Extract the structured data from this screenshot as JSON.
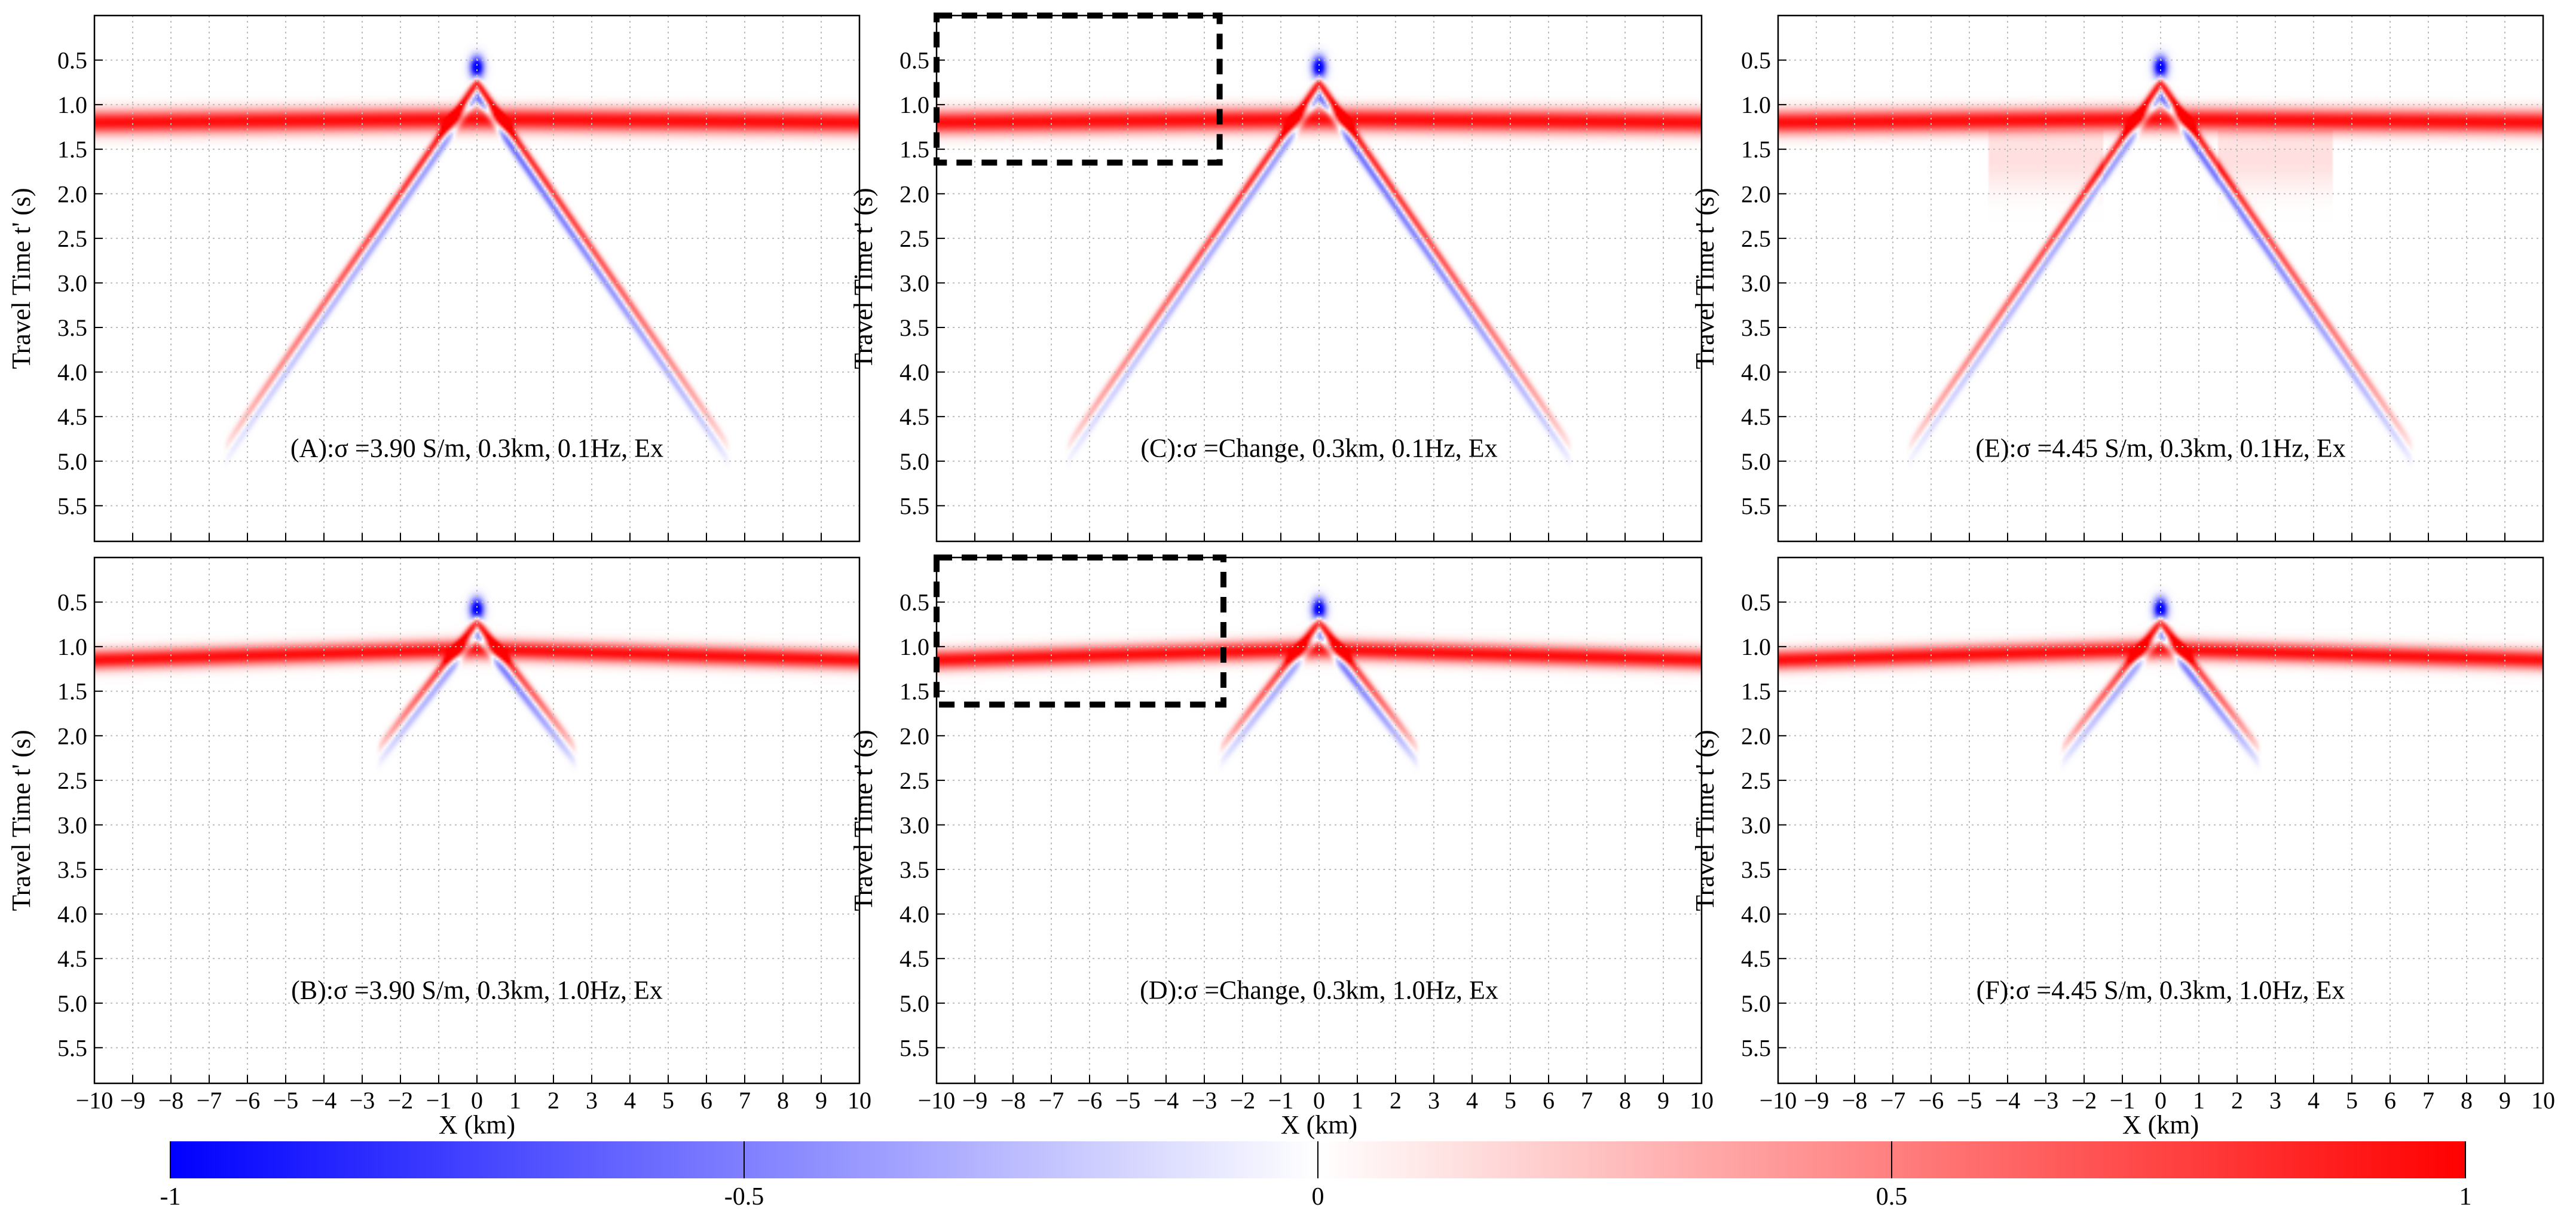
{
  "figure": {
    "colors": {
      "negative": "#0000ff",
      "zero": "#ffffff",
      "positive": "#ff0000",
      "grid": "#bdbdbd",
      "box": "#000000"
    }
  },
  "chart_data": [
    {
      "type": "heatmap",
      "panel": "A",
      "annotation": "(A):σ =3.90 S/m, 0.3km, 0.1Hz, Ex",
      "ylabel": "Travel Time t' (s)",
      "xlabel": "",
      "xlim": [
        -10,
        10
      ],
      "ylim": [
        5.9,
        0
      ],
      "xticks": [],
      "yticks": [
        "0.5",
        "1.0",
        "1.5",
        "2.0",
        "2.5",
        "3.0",
        "3.5",
        "4.0",
        "4.5",
        "5.0",
        "5.5"
      ],
      "grid": true,
      "features": {
        "band_center_s": 1.2,
        "band_halfwidth_s": 0.13,
        "apex_s": 0.75,
        "moveout_s_per_km": 0.62,
        "flank_extent_km": 6.0,
        "side_lobe": 0.0,
        "highlight_box": null
      }
    },
    {
      "type": "heatmap",
      "panel": "C",
      "annotation": "(C):σ =Change, 0.3km, 0.1Hz, Ex",
      "ylabel": "Travel Time t' (s)",
      "xlabel": "",
      "xlim": [
        -10,
        10
      ],
      "ylim": [
        5.9,
        0
      ],
      "xticks": [],
      "yticks": [
        "0.5",
        "1.0",
        "1.5",
        "2.0",
        "2.5",
        "3.0",
        "3.5",
        "4.0",
        "4.5",
        "5.0",
        "5.5"
      ],
      "grid": true,
      "features": {
        "band_center_s": 1.2,
        "band_halfwidth_s": 0.13,
        "apex_s": 0.75,
        "moveout_s_per_km": 0.62,
        "flank_extent_km": 6.0,
        "side_lobe": 0.0,
        "highlight_box": {
          "x": [
            -10,
            -2.6
          ],
          "t": [
            0.0,
            1.65
          ]
        }
      }
    },
    {
      "type": "heatmap",
      "panel": "E",
      "annotation": "(E):σ =4.45 S/m, 0.3km, 0.1Hz, Ex",
      "ylabel": "Travel Time t' (s)",
      "xlabel": "",
      "xlim": [
        -10,
        10
      ],
      "ylim": [
        5.9,
        0
      ],
      "xticks": [],
      "yticks": [
        "0.5",
        "1.0",
        "1.5",
        "2.0",
        "2.5",
        "3.0",
        "3.5",
        "4.0",
        "4.5",
        "5.0",
        "5.5"
      ],
      "grid": true,
      "features": {
        "band_center_s": 1.2,
        "band_halfwidth_s": 0.13,
        "apex_s": 0.75,
        "moveout_s_per_km": 0.62,
        "flank_extent_km": 6.0,
        "side_lobe": 0.25,
        "highlight_box": null
      }
    },
    {
      "type": "heatmap",
      "panel": "B",
      "annotation": "(B):σ =3.90 S/m, 0.3km, 1.0Hz, Ex",
      "ylabel": "Travel Time t' (s)",
      "xlabel": "X (km)",
      "xlim": [
        -10,
        10
      ],
      "ylim": [
        5.9,
        0
      ],
      "xticks": [
        "−10",
        "−9",
        "−8",
        "−7",
        "−6",
        "−5",
        "−4",
        "−3",
        "−2",
        "−1",
        "0",
        "1",
        "2",
        "3",
        "4",
        "5",
        "6",
        "7",
        "8",
        "9",
        "10"
      ],
      "yticks": [
        "0.5",
        "1.0",
        "1.5",
        "2.0",
        "2.5",
        "3.0",
        "3.5",
        "4.0",
        "4.5",
        "5.0",
        "5.5"
      ],
      "grid": true,
      "features": {
        "band_center_s": 1.15,
        "band_halfwidth_s": 0.11,
        "apex_s": 0.72,
        "moveout_s_per_km": 0.55,
        "flank_extent_km": 2.0,
        "side_lobe": 0.0,
        "highlight_box": null
      }
    },
    {
      "type": "heatmap",
      "panel": "D",
      "annotation": "(D):σ =Change, 0.3km, 1.0Hz, Ex",
      "ylabel": "Travel Time t' (s)",
      "xlabel": "X (km)",
      "xlim": [
        -10,
        10
      ],
      "ylim": [
        5.9,
        0
      ],
      "xticks": [
        "−10",
        "−9",
        "−8",
        "−7",
        "−6",
        "−5",
        "−4",
        "−3",
        "−2",
        "−1",
        "0",
        "1",
        "2",
        "3",
        "4",
        "5",
        "6",
        "7",
        "8",
        "9",
        "10"
      ],
      "yticks": [
        "0.5",
        "1.0",
        "1.5",
        "2.0",
        "2.5",
        "3.0",
        "3.5",
        "4.0",
        "4.5",
        "5.0",
        "5.5"
      ],
      "grid": true,
      "features": {
        "band_center_s": 1.15,
        "band_halfwidth_s": 0.11,
        "apex_s": 0.72,
        "moveout_s_per_km": 0.55,
        "flank_extent_km": 2.0,
        "side_lobe": 0.0,
        "highlight_box": {
          "x": [
            -10,
            -2.5
          ],
          "t": [
            0.0,
            1.65
          ]
        }
      }
    },
    {
      "type": "heatmap",
      "panel": "F",
      "annotation": "(F):σ =4.45 S/m, 0.3km, 1.0Hz, Ex",
      "ylabel": "Travel Time t' (s)",
      "xlabel": "X (km)",
      "xlim": [
        -10,
        10
      ],
      "ylim": [
        5.9,
        0
      ],
      "xticks": [
        "−10",
        "−9",
        "−8",
        "−7",
        "−6",
        "−5",
        "−4",
        "−3",
        "−2",
        "−1",
        "0",
        "1",
        "2",
        "3",
        "4",
        "5",
        "6",
        "7",
        "8",
        "9",
        "10"
      ],
      "yticks": [
        "0.5",
        "1.0",
        "1.5",
        "2.0",
        "2.5",
        "3.0",
        "3.5",
        "4.0",
        "4.5",
        "5.0",
        "5.5"
      ],
      "grid": true,
      "features": {
        "band_center_s": 1.15,
        "band_halfwidth_s": 0.11,
        "apex_s": 0.72,
        "moveout_s_per_km": 0.55,
        "flank_extent_km": 2.0,
        "side_lobe": 0.0,
        "highlight_box": null
      }
    }
  ],
  "colorbar": {
    "range": [
      -1,
      1
    ],
    "ticks": [
      -1,
      -0.5,
      0,
      0.5,
      1
    ],
    "tick_labels": [
      "-1",
      "-0.5",
      "0",
      "0.5",
      "1"
    ]
  }
}
